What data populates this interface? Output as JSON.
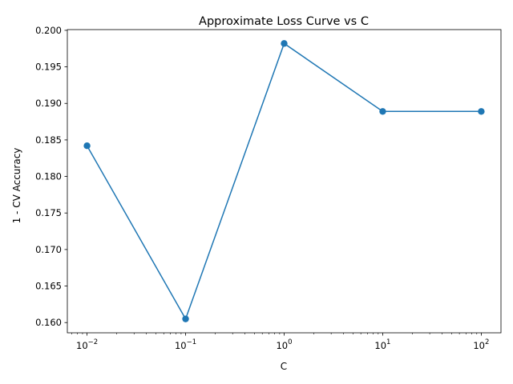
{
  "chart_data": {
    "type": "line",
    "title": "Approximate Loss Curve vs C",
    "xlabel": "C",
    "ylabel": "1 - CV Accuracy",
    "x_scale": "log",
    "x_tick_base": "10",
    "x_tick_exponents": [
      "−2",
      "−1",
      "0",
      "1",
      "2"
    ],
    "x_tick_values": [
      0.01,
      0.1,
      1,
      10,
      100
    ],
    "xlim": [
      0.00631,
      158.5
    ],
    "ylim": [
      0.1586,
      0.2001
    ],
    "y_ticks": [
      "0.160",
      "0.165",
      "0.170",
      "0.175",
      "0.180",
      "0.185",
      "0.190",
      "0.195",
      "0.200"
    ],
    "grid": false,
    "color": "#1f77b4",
    "series": [
      {
        "x": [
          0.01,
          0.1,
          1,
          10,
          100
        ],
        "y": [
          0.1842,
          0.1605,
          0.1982,
          0.1889,
          0.1889
        ]
      }
    ]
  }
}
